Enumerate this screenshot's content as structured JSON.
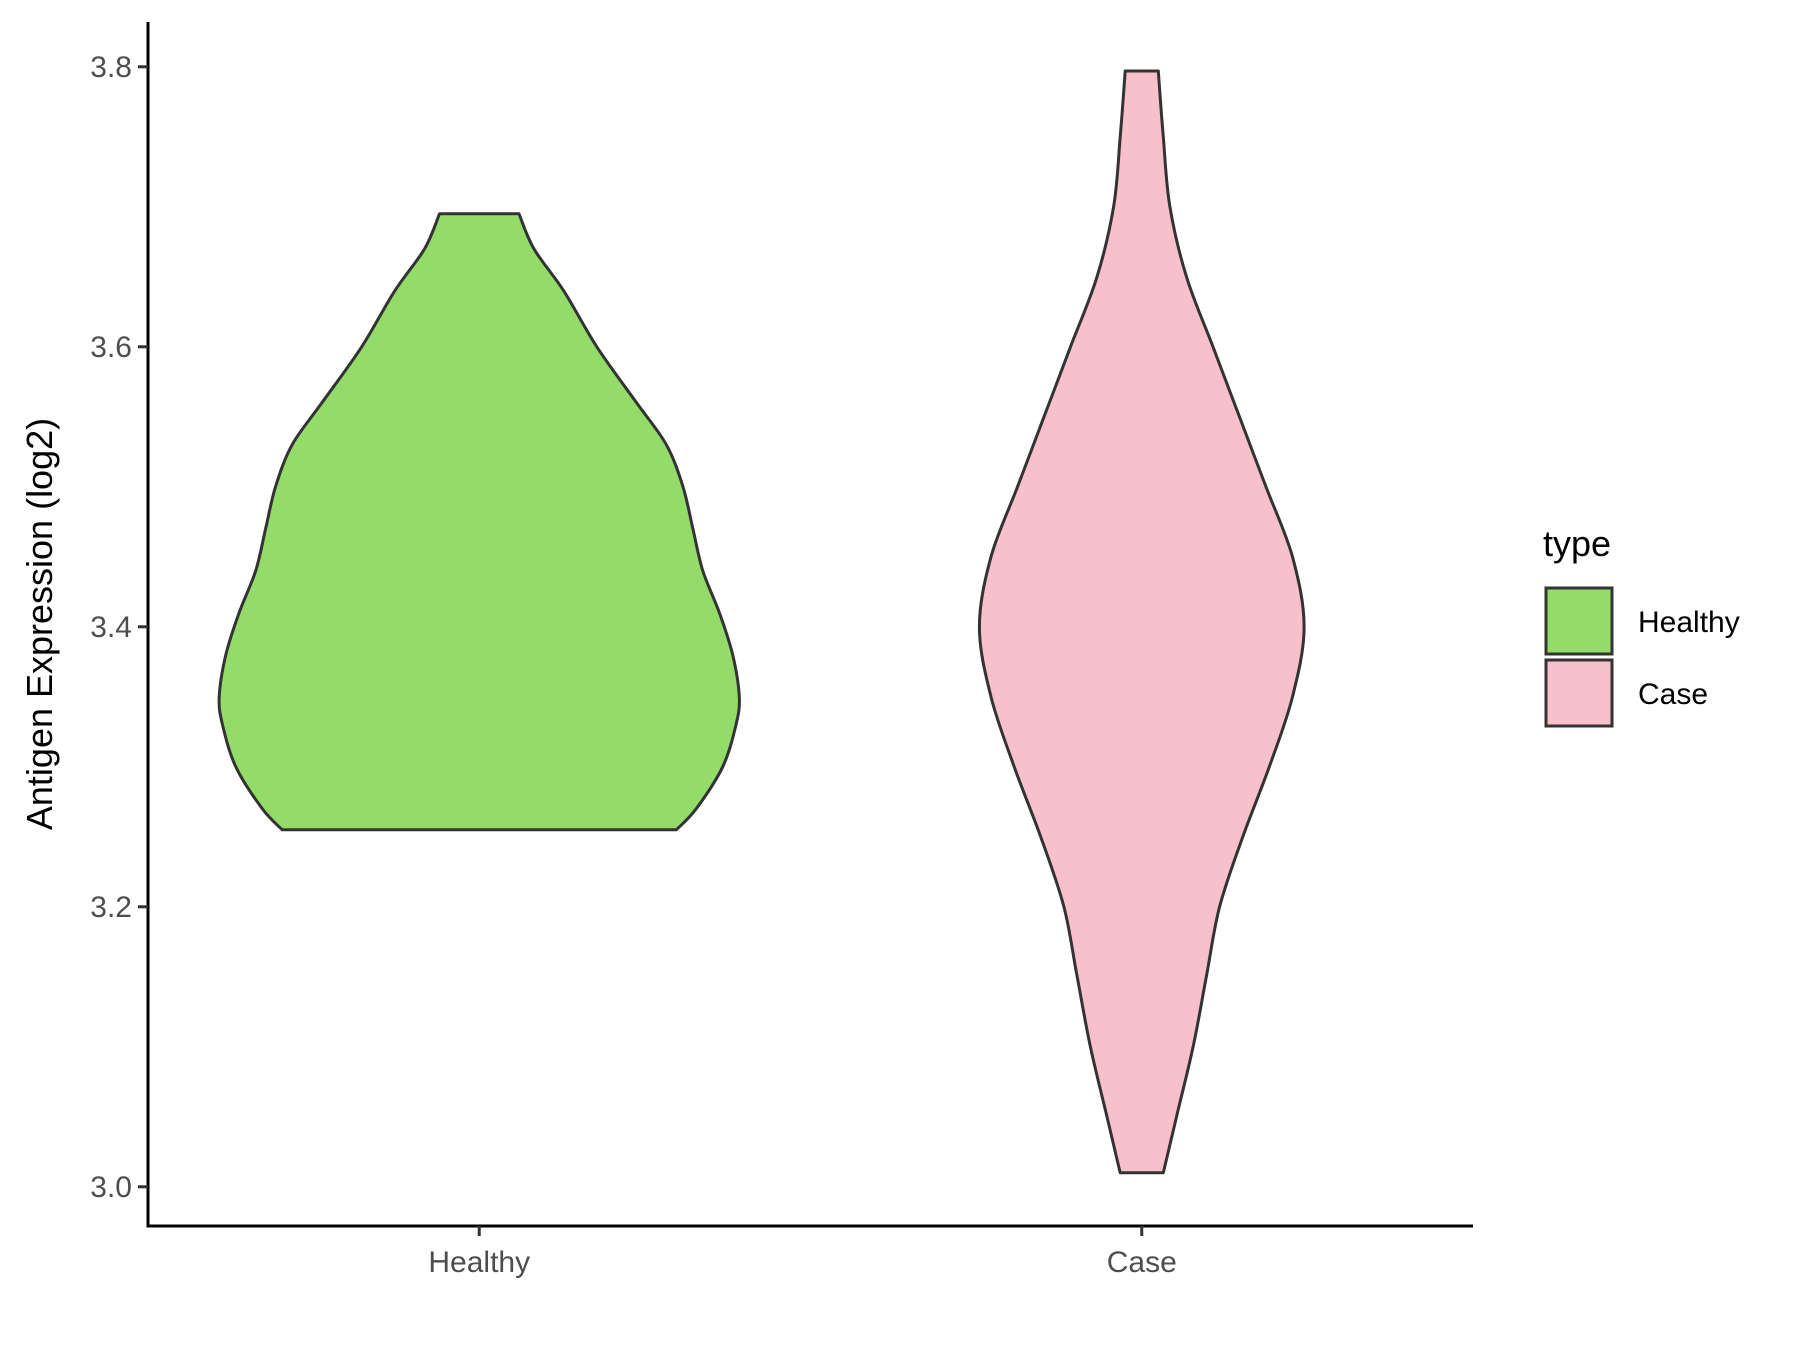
{
  "chart_data": {
    "type": "violin",
    "title": "",
    "xlabel": "",
    "ylabel": "Antigen Expression (log2)",
    "ylim": [
      2.972,
      3.832
    ],
    "yticks": [
      3.0,
      3.2,
      3.4,
      3.6,
      3.8
    ],
    "ytick_labels": [
      "3.0",
      "3.2",
      "3.4",
      "3.6",
      "3.8"
    ],
    "categories": [
      "Healthy",
      "Case"
    ],
    "grid": false,
    "legend": {
      "title": "type",
      "placement": "right",
      "entries": [
        {
          "label": "Healthy",
          "color": "#93DC6A"
        },
        {
          "label": "Case",
          "color": "#F8C0CB"
        }
      ]
    },
    "series": [
      {
        "category": "Healthy",
        "color": "#93DC6A",
        "min": 3.255,
        "max": 3.695,
        "profile": [
          [
            3.255,
            0.595
          ],
          [
            3.27,
            0.655
          ],
          [
            3.3,
            0.735
          ],
          [
            3.33,
            0.775
          ],
          [
            3.35,
            0.785
          ],
          [
            3.38,
            0.765
          ],
          [
            3.41,
            0.725
          ],
          [
            3.44,
            0.675
          ],
          [
            3.47,
            0.645
          ],
          [
            3.5,
            0.615
          ],
          [
            3.53,
            0.565
          ],
          [
            3.56,
            0.475
          ],
          [
            3.6,
            0.355
          ],
          [
            3.64,
            0.255
          ],
          [
            3.67,
            0.165
          ],
          [
            3.695,
            0.12
          ]
        ]
      },
      {
        "category": "Case",
        "color": "#F8C0CB",
        "min": 3.01,
        "max": 3.797,
        "profile": [
          [
            3.01,
            0.065
          ],
          [
            3.05,
            0.105
          ],
          [
            3.1,
            0.155
          ],
          [
            3.15,
            0.195
          ],
          [
            3.2,
            0.235
          ],
          [
            3.25,
            0.305
          ],
          [
            3.3,
            0.385
          ],
          [
            3.35,
            0.455
          ],
          [
            3.4,
            0.49
          ],
          [
            3.45,
            0.455
          ],
          [
            3.5,
            0.375
          ],
          [
            3.55,
            0.295
          ],
          [
            3.6,
            0.215
          ],
          [
            3.65,
            0.135
          ],
          [
            3.7,
            0.085
          ],
          [
            3.75,
            0.065
          ],
          [
            3.797,
            0.05
          ]
        ]
      }
    ]
  }
}
